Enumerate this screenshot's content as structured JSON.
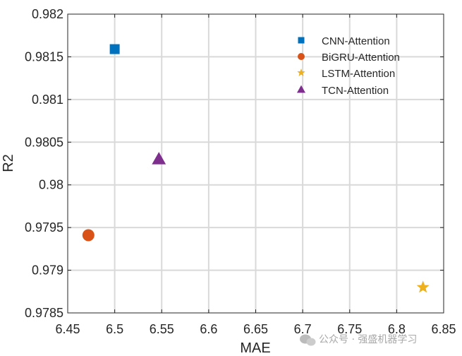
{
  "chart_data": {
    "type": "scatter",
    "title": "",
    "xlabel": "MAE",
    "ylabel": "R2",
    "xlim": [
      6.45,
      6.85
    ],
    "ylim": [
      0.9785,
      0.982
    ],
    "grid": true,
    "legend_position": "top-right",
    "xticks": [
      6.45,
      6.5,
      6.55,
      6.6,
      6.65,
      6.7,
      6.75,
      6.8,
      6.85
    ],
    "xtick_labels": [
      "6.45",
      "6.5",
      "6.55",
      "6.6",
      "6.65",
      "6.7",
      "6.75",
      "6.8",
      "6.85"
    ],
    "yticks": [
      0.9785,
      0.979,
      0.9795,
      0.98,
      0.9805,
      0.981,
      0.9815,
      0.982
    ],
    "ytick_labels": [
      "0.9785",
      "0.979",
      "0.9795",
      "0.98",
      "0.9805",
      "0.981",
      "0.9815",
      "0.982"
    ],
    "series": [
      {
        "name": "CNN-Attention",
        "marker": "square",
        "color": "#0072BD",
        "x": 6.5,
        "y": 0.98159
      },
      {
        "name": "BiGRU-Attention",
        "marker": "circle",
        "color": "#D95319",
        "x": 6.472,
        "y": 0.97941
      },
      {
        "name": "LSTM-Attention",
        "marker": "star",
        "color": "#EDB120",
        "x": 6.828,
        "y": 0.9788
      },
      {
        "name": "TCN-Attention",
        "marker": "triangle",
        "color": "#7E2F8E",
        "x": 6.547,
        "y": 0.9803
      }
    ]
  },
  "watermark": {
    "text": "公众号 · 强盛机器学习",
    "icon": "wechat-icon"
  }
}
